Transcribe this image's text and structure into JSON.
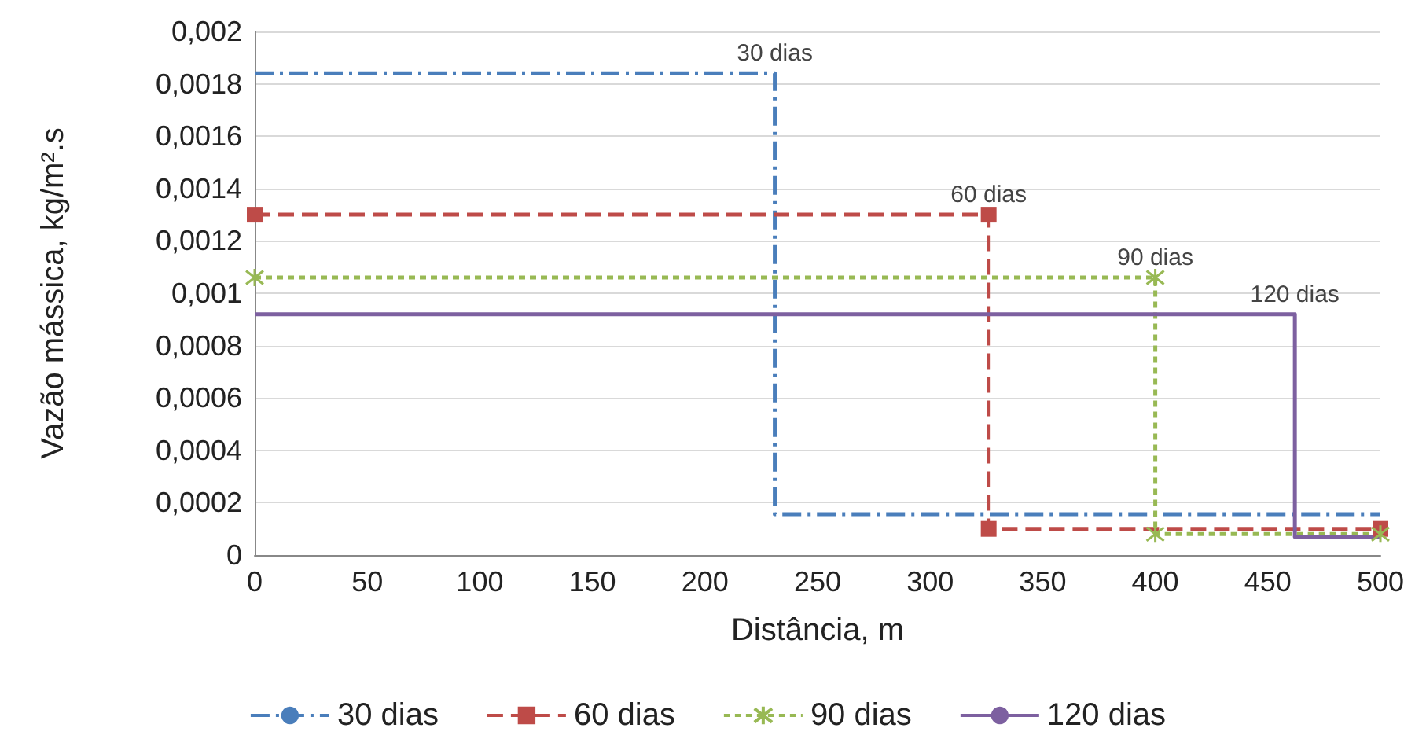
{
  "chart_data": {
    "type": "line",
    "xlabel": "Distância, m",
    "ylabel": "Vazão mássica, kg/m².s",
    "xlim": [
      0,
      500
    ],
    "xticks": [
      0,
      50,
      100,
      150,
      200,
      250,
      300,
      350,
      400,
      450,
      500
    ],
    "ylim": [
      0,
      0.002
    ],
    "yticks": [
      {
        "value": 0,
        "label": "0"
      },
      {
        "value": 0.0002,
        "label": "0,0002"
      },
      {
        "value": 0.0004,
        "label": "0,0004"
      },
      {
        "value": 0.0006,
        "label": "0,0006"
      },
      {
        "value": 0.0008,
        "label": "0,0008"
      },
      {
        "value": 0.001,
        "label": "0,001"
      },
      {
        "value": 0.0012,
        "label": "0,0012"
      },
      {
        "value": 0.0014,
        "label": "0,0014"
      },
      {
        "value": 0.0016,
        "label": "0,0016"
      },
      {
        "value": 0.0018,
        "label": "0,0018"
      },
      {
        "value": 0.002,
        "label": "0,002"
      }
    ],
    "grid": "y",
    "legend": "bottom",
    "series": [
      {
        "name": "30 dias",
        "color": "#4a7ebb",
        "line_style": "dashdot",
        "marker": "none",
        "x": [
          0,
          231,
          231,
          500
        ],
        "values": [
          0.00184,
          0.00184,
          0.000156,
          0.000156
        ]
      },
      {
        "name": "60 dias",
        "color": "#be4b48",
        "line_style": "dashed",
        "marker": "square",
        "x": [
          0,
          326,
          326,
          500
        ],
        "values": [
          0.0013,
          0.0013,
          0.0001,
          0.0001
        ]
      },
      {
        "name": "90 dias",
        "color": "#98b954",
        "line_style": "dotted",
        "marker": "cross",
        "x": [
          0,
          400,
          400,
          500
        ],
        "values": [
          0.00106,
          0.00106,
          8e-05,
          8e-05
        ]
      },
      {
        "name": "120 dias",
        "color": "#7d60a0",
        "line_style": "solid",
        "marker": "none",
        "x": [
          0,
          462,
          462,
          500
        ],
        "values": [
          0.00092,
          0.00092,
          7e-05,
          7e-05
        ]
      }
    ],
    "annotations": [
      {
        "text": "30 dias",
        "x": 231,
        "y": 0.00184
      },
      {
        "text": "60 dias",
        "x": 326,
        "y": 0.0013
      },
      {
        "text": "90 dias",
        "x": 400,
        "y": 0.00106
      },
      {
        "text": "120 dias",
        "x": 462,
        "y": 0.00092
      }
    ]
  }
}
